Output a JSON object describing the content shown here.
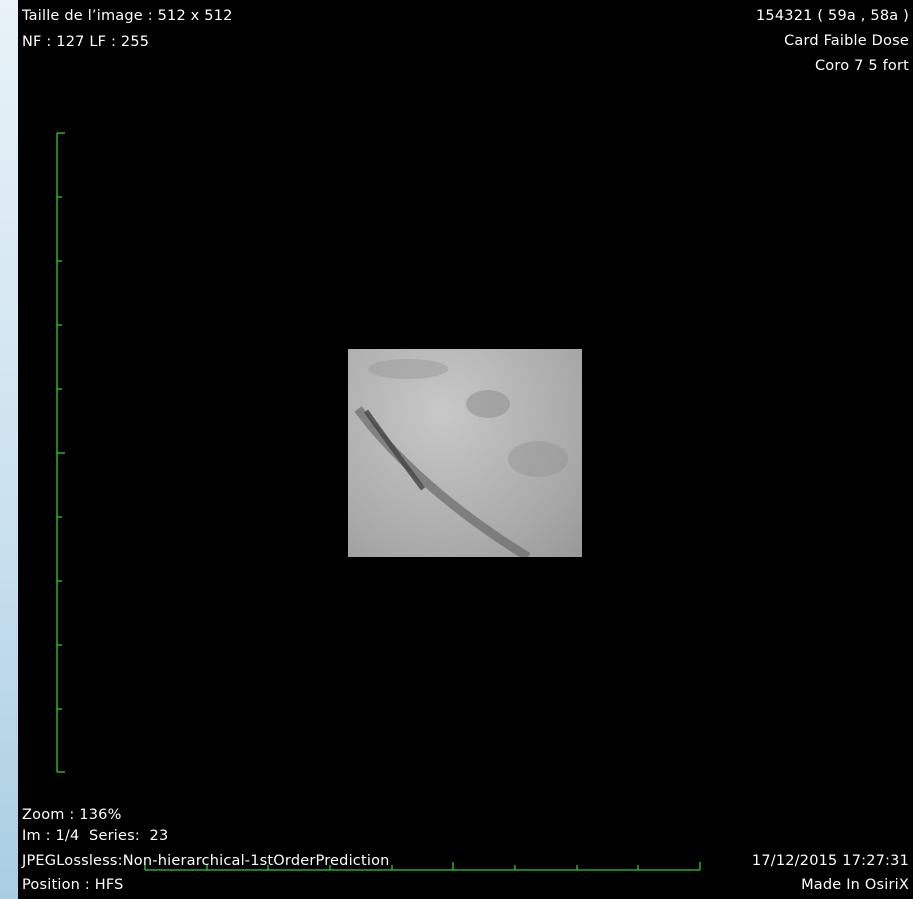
{
  "overlay": {
    "top_left": [
      "Taille de l’image : 512 x 512",
      "NF : 127 LF : 255"
    ],
    "top_right": [
      "154321 ( 59a , 58a )",
      "Card Faible Dose",
      "Coro 7 5 fort"
    ],
    "bottom_left": [
      "Zoom : 136%",
      "Im : 1/4  Series:  23",
      "JPEGLossless:Non-hierarchical-1stOrderPrediction",
      "Position : HFS"
    ],
    "bottom_right": [
      "17/12/2015 17:27:31",
      "Made In OsiriX"
    ]
  }
}
